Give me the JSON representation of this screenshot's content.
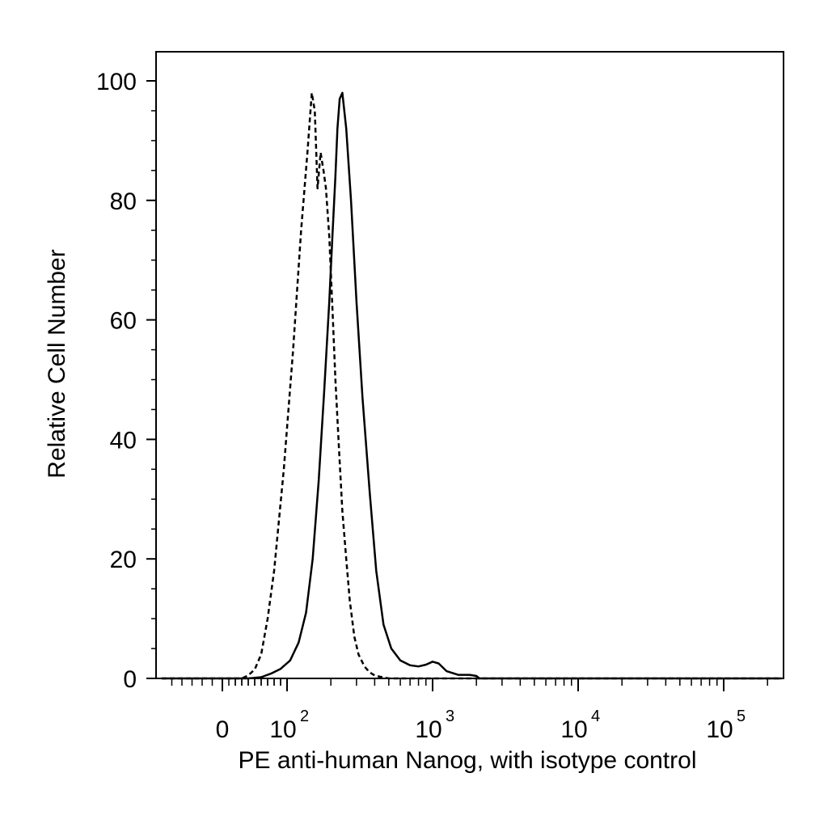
{
  "chart_data": {
    "type": "line",
    "title": "",
    "xlabel": "PE anti-human Nanog, with isotype control",
    "ylabel": "Relative Cell Number",
    "x_scale": "biexponential",
    "xlim": [
      -60,
      250000
    ],
    "ylim": [
      0,
      105
    ],
    "grid": false,
    "legend": "none",
    "x_ticks": [
      {
        "value": 0,
        "label": "0",
        "power": ""
      },
      {
        "value": 100,
        "label": "10",
        "power": "2"
      },
      {
        "value": 1000,
        "label": "10",
        "power": "3"
      },
      {
        "value": 10000,
        "label": "10",
        "power": "4"
      },
      {
        "value": 100000,
        "label": "10",
        "power": "5"
      }
    ],
    "y_ticks": [
      {
        "value": 0,
        "label": "0"
      },
      {
        "value": 20,
        "label": "20"
      },
      {
        "value": 40,
        "label": "40"
      },
      {
        "value": 60,
        "label": "60"
      },
      {
        "value": 80,
        "label": "80"
      },
      {
        "value": 100,
        "label": "100"
      }
    ],
    "series": [
      {
        "style": "solid",
        "color": "#000000",
        "x": [
          -60,
          40,
          60,
          75,
          90,
          105,
          120,
          135,
          150,
          165,
          180,
          195,
          205,
          215,
          222,
          230,
          240,
          255,
          275,
          300,
          330,
          370,
          410,
          460,
          520,
          600,
          700,
          800,
          900,
          1000,
          1100,
          1250,
          1500,
          1800,
          2000,
          2100,
          3000,
          250000
        ],
        "y": [
          0,
          0,
          0.2,
          0.8,
          1.6,
          3,
          6,
          11,
          20,
          33,
          48,
          63,
          74,
          84,
          92,
          97,
          98,
          92,
          80,
          63,
          47,
          31,
          18,
          9,
          5,
          3,
          2.2,
          2,
          2.3,
          2.8,
          2.5,
          1.2,
          0.6,
          0.6,
          0.4,
          0,
          0,
          0
        ]
      },
      {
        "style": "dashed",
        "color": "#000000",
        "x": [
          -60,
          30,
          40,
          50,
          60,
          70,
          80,
          95,
          110,
          125,
          138,
          148,
          155,
          162,
          170,
          178,
          185,
          195,
          205,
          215,
          228,
          240,
          255,
          270,
          290,
          310,
          340,
          370,
          400,
          450,
          500,
          600,
          800,
          250000
        ],
        "y": [
          0,
          0,
          0.5,
          1.5,
          4,
          10,
          18,
          35,
          55,
          75,
          88,
          98,
          95,
          82,
          88,
          85,
          82,
          74,
          62,
          50,
          38,
          28,
          20,
          13,
          7,
          4,
          2,
          1,
          0.5,
          0.2,
          0,
          0,
          0,
          0
        ]
      }
    ]
  }
}
